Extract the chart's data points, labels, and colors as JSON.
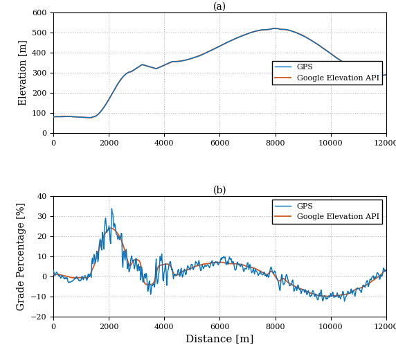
{
  "title_a": "(a)",
  "title_b": "(b)",
  "xlabel": "Distance [m]",
  "ylabel_a": "Elevation [m]",
  "ylabel_b": "Grade Percentage [%]",
  "xlim": [
    0,
    12000
  ],
  "ylim_a": [
    0,
    600
  ],
  "ylim_b": [
    -20,
    40
  ],
  "yticks_a": [
    0,
    100,
    200,
    300,
    400,
    500,
    600
  ],
  "yticks_b": [
    -20,
    -10,
    0,
    10,
    20,
    30,
    40
  ],
  "xticks": [
    0,
    2000,
    4000,
    6000,
    8000,
    10000,
    12000
  ],
  "gps_color": "#0072BD",
  "api_color": "#D95319",
  "legend_gps": "GPS",
  "legend_api": "Google Elevation API",
  "line_width": 1.0,
  "grid_color": "#b0b0b0",
  "grid_style": ":",
  "background_color": "#ffffff",
  "seed": 42
}
